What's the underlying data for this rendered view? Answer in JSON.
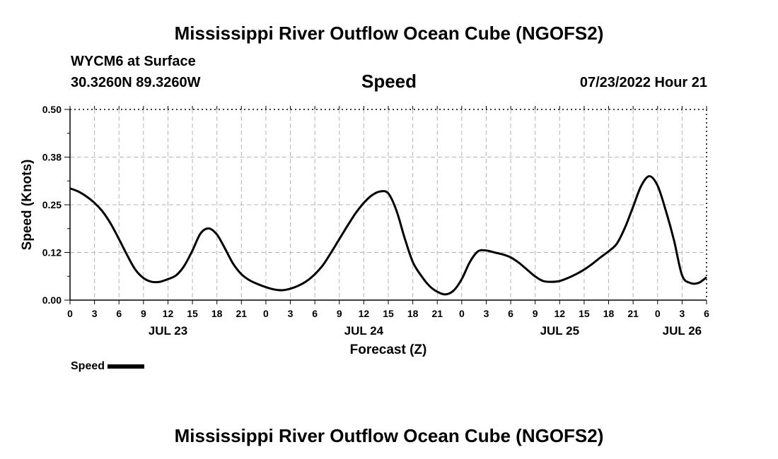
{
  "page": {
    "title": "Mississippi River Outflow Ocean Cube (NGOFS2)",
    "footer_title": "Mississippi River Outflow Ocean Cube (NGOFS2)"
  },
  "station": {
    "name_line": "WYCM6 at Surface",
    "coords": "30.3260N  89.3260W",
    "timestamp": "07/23/2022 Hour 21"
  },
  "chart_data": {
    "type": "line",
    "title": "Speed",
    "xlabel": "Forecast (Z)",
    "ylabel": "Speed (Knots)",
    "ylim": [
      0,
      0.5
    ],
    "xlim": [
      0,
      78
    ],
    "x_unit": "hours since JUL 23 00Z",
    "yticks": [
      {
        "value": 0,
        "label": "0.00"
      },
      {
        "value": 0.125,
        "label": "0.12"
      },
      {
        "value": 0.25,
        "label": "0.25"
      },
      {
        "value": 0.375,
        "label": "0.38"
      },
      {
        "value": 0.5,
        "label": "0.50"
      }
    ],
    "xticks": [
      {
        "value": 0,
        "label": "0"
      },
      {
        "value": 3,
        "label": "3"
      },
      {
        "value": 6,
        "label": "6"
      },
      {
        "value": 9,
        "label": "9"
      },
      {
        "value": 12,
        "label": "12"
      },
      {
        "value": 15,
        "label": "15"
      },
      {
        "value": 18,
        "label": "18"
      },
      {
        "value": 21,
        "label": "21"
      },
      {
        "value": 24,
        "label": "0"
      },
      {
        "value": 27,
        "label": "3"
      },
      {
        "value": 30,
        "label": "6"
      },
      {
        "value": 33,
        "label": "9"
      },
      {
        "value": 36,
        "label": "12"
      },
      {
        "value": 39,
        "label": "15"
      },
      {
        "value": 42,
        "label": "18"
      },
      {
        "value": 45,
        "label": "21"
      },
      {
        "value": 48,
        "label": "0"
      },
      {
        "value": 51,
        "label": "3"
      },
      {
        "value": 54,
        "label": "6"
      },
      {
        "value": 57,
        "label": "9"
      },
      {
        "value": 60,
        "label": "12"
      },
      {
        "value": 63,
        "label": "15"
      },
      {
        "value": 66,
        "label": "18"
      },
      {
        "value": 69,
        "label": "21"
      },
      {
        "value": 72,
        "label": "0"
      },
      {
        "value": 75,
        "label": "3"
      },
      {
        "value": 78,
        "label": "6"
      }
    ],
    "day_labels": [
      {
        "value": 12,
        "label": "JUL 23"
      },
      {
        "value": 36,
        "label": "JUL 24"
      },
      {
        "value": 60,
        "label": "JUL 25"
      },
      {
        "value": 75,
        "label": "JUL 26"
      }
    ],
    "grid": true,
    "legend": {
      "label": "Speed",
      "placement": "bottom-left"
    },
    "series": [
      {
        "name": "Speed",
        "x": [
          0,
          1,
          2,
          3,
          4,
          5,
          6,
          7,
          8,
          9,
          10,
          11,
          12,
          13,
          14,
          15,
          16,
          17,
          18,
          19,
          20,
          21,
          22,
          23,
          24,
          25,
          26,
          27,
          28,
          29,
          30,
          31,
          32,
          33,
          34,
          35,
          36,
          37,
          38,
          39,
          40,
          41,
          42,
          43,
          44,
          45,
          46,
          47,
          48,
          49,
          50,
          51,
          52,
          53,
          54,
          55,
          56,
          57,
          58,
          59,
          60,
          61,
          62,
          63,
          64,
          65,
          66,
          67,
          68,
          69,
          70,
          71,
          72,
          73,
          74,
          75,
          76,
          77,
          78
        ],
        "values": [
          0.293,
          0.285,
          0.272,
          0.255,
          0.232,
          0.2,
          0.16,
          0.118,
          0.08,
          0.058,
          0.048,
          0.048,
          0.055,
          0.065,
          0.09,
          0.13,
          0.175,
          0.188,
          0.172,
          0.135,
          0.095,
          0.068,
          0.052,
          0.042,
          0.034,
          0.028,
          0.026,
          0.03,
          0.038,
          0.05,
          0.068,
          0.092,
          0.125,
          0.16,
          0.195,
          0.228,
          0.255,
          0.275,
          0.285,
          0.28,
          0.235,
          0.163,
          0.1,
          0.065,
          0.038,
          0.022,
          0.015,
          0.025,
          0.055,
          0.1,
          0.128,
          0.13,
          0.125,
          0.12,
          0.112,
          0.098,
          0.08,
          0.062,
          0.05,
          0.048,
          0.05,
          0.058,
          0.068,
          0.08,
          0.095,
          0.112,
          0.128,
          0.148,
          0.19,
          0.245,
          0.3,
          0.325,
          0.3,
          0.235,
          0.158,
          0.065,
          0.045,
          0.045,
          0.06
        ]
      }
    ]
  }
}
